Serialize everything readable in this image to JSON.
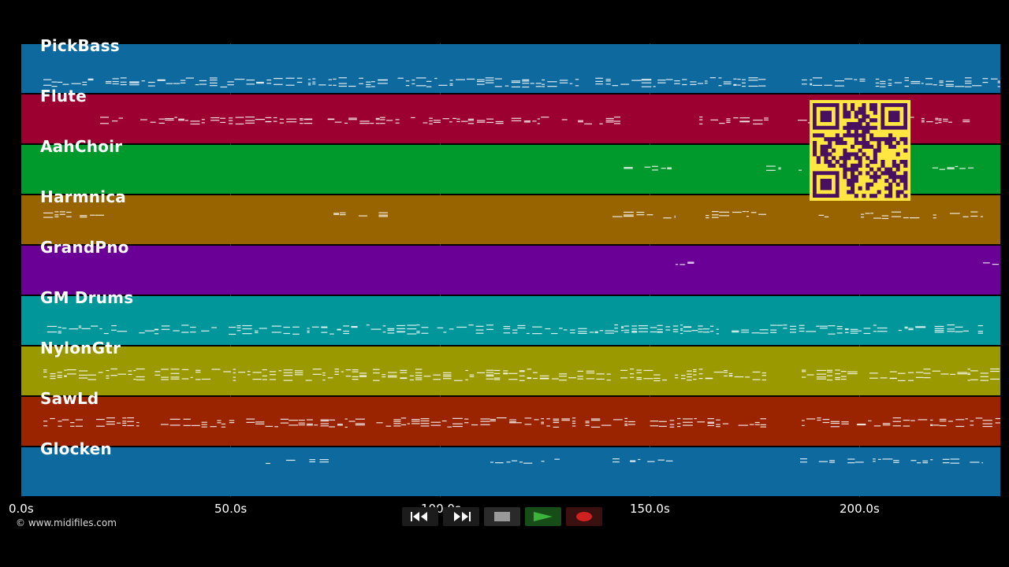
{
  "tracks": [
    {
      "name": "PickBass",
      "color": "#0e6a9e"
    },
    {
      "name": "Flute",
      "color": "#9c0030"
    },
    {
      "name": "AahChoir",
      "color": "#009a2c"
    },
    {
      "name": "Harmnica",
      "color": "#986400"
    },
    {
      "name": "GrandPno",
      "color": "#6a0096"
    },
    {
      "name": "GM Drums",
      "color": "#00969a"
    },
    {
      "name": "NylonGtr",
      "color": "#9a9a00"
    },
    {
      "name": "SawLd",
      "color": "#9a2400"
    },
    {
      "name": "Glocken",
      "color": "#0e6a9e"
    }
  ],
  "timeline": {
    "ticks": [
      "0.0s",
      "50.0s",
      "100.0s",
      "150.0s",
      "200.0s"
    ]
  },
  "copyright": "© www.midifiles.com",
  "controls": {
    "rewind_icon": "rewind-icon",
    "fast_forward_icon": "fast-forward-icon",
    "stop_icon": "stop-icon",
    "play_icon": "play-icon",
    "record_icon": "record-icon",
    "play_color": "#2a8a2a",
    "record_color": "#d02020"
  },
  "overlay": {
    "qr_color": "#ffe640",
    "qr_dark": "#4a1060"
  }
}
